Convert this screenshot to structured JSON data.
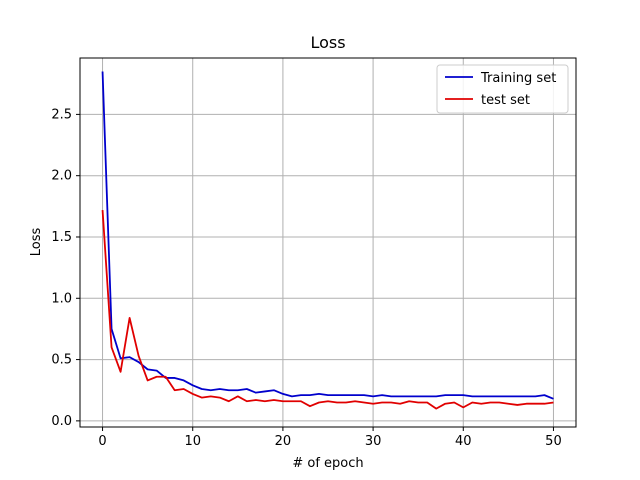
{
  "chart_data": {
    "type": "line",
    "title": "Loss",
    "xlabel": "# of epoch",
    "ylabel": "Loss",
    "xlim": [
      -2.5,
      52.5
    ],
    "ylim": [
      -0.05,
      2.96
    ],
    "xticks": [
      0,
      10,
      20,
      30,
      40,
      50
    ],
    "yticks": [
      0.0,
      0.5,
      1.0,
      1.5,
      2.0,
      2.5
    ],
    "xtick_labels": [
      "0",
      "10",
      "20",
      "30",
      "40",
      "50"
    ],
    "ytick_labels": [
      "0.0",
      "0.5",
      "1.0",
      "1.5",
      "2.0",
      "2.5"
    ],
    "grid": true,
    "legend_position": "top-right",
    "x": [
      0,
      1,
      2,
      3,
      4,
      5,
      6,
      7,
      8,
      9,
      10,
      11,
      12,
      13,
      14,
      15,
      16,
      17,
      18,
      19,
      20,
      21,
      22,
      23,
      24,
      25,
      26,
      27,
      28,
      29,
      30,
      31,
      32,
      33,
      34,
      35,
      36,
      37,
      38,
      39,
      40,
      41,
      42,
      43,
      44,
      45,
      46,
      47,
      48,
      49,
      50
    ],
    "series": [
      {
        "name": "Training set",
        "color": "#0000cc",
        "values": [
          2.85,
          0.75,
          0.51,
          0.52,
          0.48,
          0.42,
          0.41,
          0.35,
          0.35,
          0.33,
          0.29,
          0.26,
          0.25,
          0.26,
          0.25,
          0.25,
          0.26,
          0.23,
          0.24,
          0.25,
          0.22,
          0.2,
          0.21,
          0.21,
          0.22,
          0.21,
          0.21,
          0.21,
          0.21,
          0.21,
          0.2,
          0.21,
          0.2,
          0.2,
          0.2,
          0.2,
          0.2,
          0.2,
          0.21,
          0.21,
          0.21,
          0.2,
          0.2,
          0.2,
          0.2,
          0.2,
          0.2,
          0.2,
          0.2,
          0.21,
          0.18
        ]
      },
      {
        "name": "test set",
        "color": "#e00000",
        "values": [
          1.72,
          0.6,
          0.4,
          0.84,
          0.53,
          0.33,
          0.36,
          0.36,
          0.25,
          0.26,
          0.22,
          0.19,
          0.2,
          0.19,
          0.16,
          0.2,
          0.16,
          0.17,
          0.16,
          0.17,
          0.16,
          0.16,
          0.16,
          0.12,
          0.15,
          0.16,
          0.15,
          0.15,
          0.16,
          0.15,
          0.14,
          0.15,
          0.15,
          0.14,
          0.16,
          0.15,
          0.15,
          0.1,
          0.14,
          0.15,
          0.11,
          0.15,
          0.14,
          0.15,
          0.15,
          0.14,
          0.13,
          0.14,
          0.14,
          0.14,
          0.15
        ]
      }
    ]
  }
}
